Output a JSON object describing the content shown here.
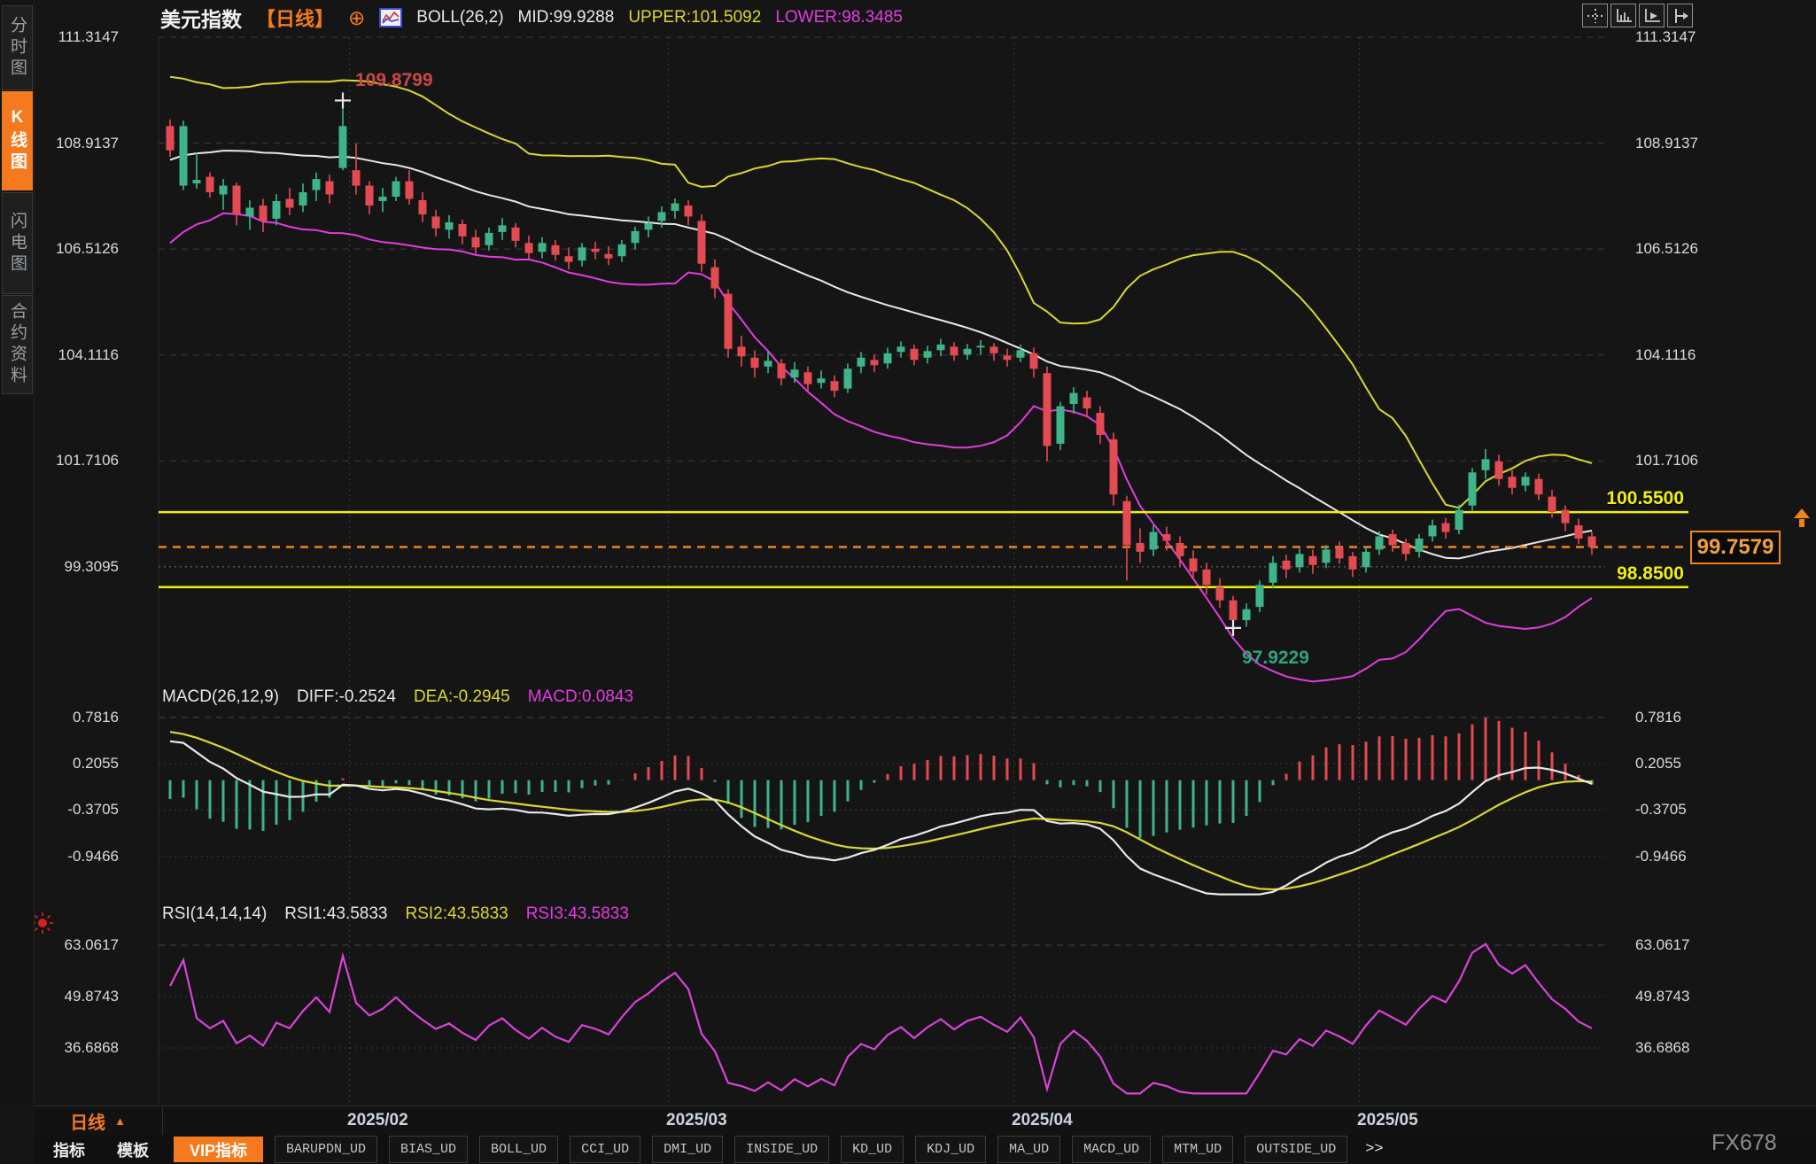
{
  "header": {
    "symbol": "美元指数",
    "period_tag": "【日线】",
    "indicator": "BOLL(26,2)",
    "mid_label": "MID:99.9288",
    "upper_label": "UPPER:101.5092",
    "lower_label": "LOWER:98.3485"
  },
  "sidebar": {
    "tabs": [
      {
        "label": "分时图",
        "active": false
      },
      {
        "label": "K线图",
        "active": true
      },
      {
        "label": "闪电图",
        "active": false
      },
      {
        "label": "合约资料",
        "active": false
      }
    ]
  },
  "toolbar_icons": [
    "move-crosshair-icon",
    "scale-axis-icon",
    "pointer-axis-icon",
    "exit-right-icon"
  ],
  "main_chart": {
    "y_ticks": [
      "111.3147",
      "108.9137",
      "106.5126",
      "104.1116",
      "101.7106",
      "99.3095"
    ],
    "high_label": "109.8799",
    "low_label": "97.9229",
    "resistance_label": "100.5500",
    "support_label": "98.8500",
    "current_price": "99.7579"
  },
  "macd": {
    "title": "MACD(26,12,9)",
    "diff_label": "DIFF:-0.2524",
    "dea_label": "DEA:-0.2945",
    "macd_label": "MACD:0.0843",
    "y_ticks": [
      "0.7816",
      "0.2055",
      "-0.3705",
      "-0.9466"
    ]
  },
  "rsi": {
    "title": "RSI(14,14,14)",
    "rsi1_label": "RSI1:43.5833",
    "rsi2_label": "RSI2:43.5833",
    "rsi3_label": "RSI3:43.5833",
    "y_ticks": [
      "63.0617",
      "49.8743",
      "36.6868"
    ]
  },
  "x_axis": {
    "period_label": "日线",
    "labels": [
      "2025/02",
      "2025/03",
      "2025/04",
      "2025/05"
    ]
  },
  "bottom_tabs": [
    {
      "label": "指标",
      "type": "plain"
    },
    {
      "label": "模板",
      "type": "plain"
    },
    {
      "label": "VIP指标",
      "type": "active"
    },
    {
      "label": "BARUPDN_UD",
      "type": "ud"
    },
    {
      "label": "BIAS_UD",
      "type": "ud"
    },
    {
      "label": "BOLL_UD",
      "type": "ud"
    },
    {
      "label": "CCI_UD",
      "type": "ud"
    },
    {
      "label": "DMI_UD",
      "type": "ud"
    },
    {
      "label": "INSIDE_UD",
      "type": "ud"
    },
    {
      "label": "KD_UD",
      "type": "ud"
    },
    {
      "label": "KDJ_UD",
      "type": "ud"
    },
    {
      "label": "MA_UD",
      "type": "ud"
    },
    {
      "label": "MACD_UD",
      "type": "ud"
    },
    {
      "label": "MTM_UD",
      "type": "ud"
    },
    {
      "label": "OUTSIDE_UD",
      "type": "ud"
    },
    {
      "label": ">>",
      "type": "more"
    }
  ],
  "watermark": "FX678",
  "colors": {
    "accent_orange": "#f5791d",
    "up_green": "#3eb488",
    "down_red": "#e44a52",
    "band_upper_yellow": "#d8d832",
    "band_mid_white": "#e8e8e8",
    "band_lower_magenta": "#e23ce2",
    "hline_yellow": "#f0f010",
    "price_line_orange": "#f08418",
    "high_label_red": "#cc4747",
    "low_label_teal": "#2fa380",
    "rsi_line_magenta": "#d943d9",
    "tick_text": "#d9dbe2"
  },
  "chart_data": {
    "type": "candlestick",
    "title": "美元指数 日线 (US Dollar Index, daily)",
    "boll_params": {
      "period": 26,
      "mult": 2
    },
    "macd_params": [
      26,
      12,
      9
    ],
    "rsi_period": 14,
    "y_axis_values": [
      111.3147,
      108.9137,
      106.5126,
      104.1116,
      101.7106,
      99.3095
    ],
    "macd_axis_values": [
      0.7816,
      0.2055,
      -0.3705,
      -0.9466
    ],
    "rsi_axis_values": [
      63.0617,
      49.8743,
      36.6868
    ],
    "hlines": [
      100.55,
      98.85
    ],
    "current_price": 99.7579,
    "high_marker": {
      "index": 13,
      "price": 109.8799
    },
    "low_marker": {
      "index": 80,
      "price": 97.9229
    },
    "month_tick_indices": [
      16,
      40,
      66,
      92
    ],
    "month_gridline_indices": [
      13.5,
      37.5,
      63.5,
      89.5
    ],
    "warmup_closes": [
      106.6,
      106.9,
      107.2,
      107.0,
      107.4,
      107.7,
      108.0,
      107.8,
      108.2,
      108.5,
      108.3,
      108.6,
      108.9,
      108.7,
      109.0,
      109.3,
      109.1,
      109.4,
      109.7,
      110.0,
      109.8,
      109.6,
      109.4,
      109.1,
      108.9
    ],
    "candles": [
      [
        109.3,
        109.45,
        108.6,
        108.75
      ],
      [
        107.95,
        109.42,
        107.85,
        109.3
      ],
      [
        108.0,
        108.7,
        107.88,
        108.08
      ],
      [
        108.15,
        108.25,
        107.68,
        107.8
      ],
      [
        107.75,
        108.1,
        107.4,
        107.95
      ],
      [
        107.95,
        108.02,
        107.05,
        107.3
      ],
      [
        107.25,
        107.62,
        106.95,
        107.45
      ],
      [
        107.5,
        107.65,
        106.9,
        107.15
      ],
      [
        107.2,
        107.76,
        107.05,
        107.6
      ],
      [
        107.65,
        107.9,
        107.28,
        107.45
      ],
      [
        107.5,
        108.0,
        107.35,
        107.8
      ],
      [
        107.85,
        108.25,
        107.6,
        108.1
      ],
      [
        108.05,
        108.2,
        107.55,
        107.75
      ],
      [
        108.35,
        109.88,
        108.3,
        109.3
      ],
      [
        108.3,
        108.9,
        107.75,
        107.95
      ],
      [
        107.95,
        108.05,
        107.3,
        107.5
      ],
      [
        107.6,
        107.9,
        107.35,
        107.7
      ],
      [
        107.7,
        108.15,
        107.6,
        108.05
      ],
      [
        108.05,
        108.3,
        107.52,
        107.65
      ],
      [
        107.62,
        107.8,
        107.12,
        107.3
      ],
      [
        107.25,
        107.4,
        106.8,
        106.98
      ],
      [
        106.95,
        107.28,
        106.75,
        107.12
      ],
      [
        107.08,
        107.18,
        106.62,
        106.8
      ],
      [
        106.78,
        106.95,
        106.4,
        106.55
      ],
      [
        106.6,
        107.0,
        106.48,
        106.88
      ],
      [
        106.9,
        107.22,
        106.72,
        107.05
      ],
      [
        107.0,
        107.1,
        106.55,
        106.7
      ],
      [
        106.65,
        106.82,
        106.28,
        106.42
      ],
      [
        106.45,
        106.78,
        106.3,
        106.65
      ],
      [
        106.6,
        106.72,
        106.25,
        106.38
      ],
      [
        106.35,
        106.55,
        106.05,
        106.22
      ],
      [
        106.25,
        106.65,
        106.12,
        106.55
      ],
      [
        106.52,
        106.68,
        106.28,
        106.45
      ],
      [
        106.4,
        106.58,
        106.15,
        106.3
      ],
      [
        106.35,
        106.72,
        106.22,
        106.62
      ],
      [
        106.65,
        107.02,
        106.5,
        106.92
      ],
      [
        106.95,
        107.25,
        106.78,
        107.1
      ],
      [
        107.15,
        107.48,
        107.0,
        107.35
      ],
      [
        107.38,
        107.66,
        107.2,
        107.55
      ],
      [
        107.5,
        107.62,
        107.05,
        107.25
      ],
      [
        107.15,
        107.3,
        106.0,
        106.18
      ],
      [
        106.1,
        106.28,
        105.4,
        105.62
      ],
      [
        105.5,
        105.6,
        104.05,
        104.25
      ],
      [
        104.3,
        104.55,
        103.85,
        104.08
      ],
      [
        104.05,
        104.22,
        103.6,
        103.82
      ],
      [
        103.85,
        104.18,
        103.7,
        103.98
      ],
      [
        103.92,
        104.02,
        103.42,
        103.58
      ],
      [
        103.6,
        103.95,
        103.48,
        103.78
      ],
      [
        103.72,
        103.85,
        103.3,
        103.45
      ],
      [
        103.48,
        103.76,
        103.35,
        103.58
      ],
      [
        103.52,
        103.65,
        103.15,
        103.3
      ],
      [
        103.35,
        103.92,
        103.25,
        103.8
      ],
      [
        103.85,
        104.18,
        103.7,
        104.05
      ],
      [
        104.0,
        104.12,
        103.72,
        103.88
      ],
      [
        103.92,
        104.28,
        103.8,
        104.15
      ],
      [
        104.18,
        104.42,
        104.05,
        104.3
      ],
      [
        104.25,
        104.35,
        103.88,
        104.0
      ],
      [
        104.05,
        104.32,
        103.92,
        104.2
      ],
      [
        104.22,
        104.48,
        104.08,
        104.35
      ],
      [
        104.3,
        104.4,
        103.98,
        104.1
      ],
      [
        104.12,
        104.36,
        104.0,
        104.25
      ],
      [
        104.28,
        104.45,
        104.12,
        104.32
      ],
      [
        104.3,
        104.38,
        103.98,
        104.15
      ],
      [
        104.1,
        104.25,
        103.85,
        104.0
      ],
      [
        104.05,
        104.35,
        103.95,
        104.22
      ],
      [
        104.15,
        104.28,
        103.6,
        103.8
      ],
      [
        103.7,
        103.85,
        101.7,
        102.05
      ],
      [
        102.1,
        103.05,
        101.95,
        102.95
      ],
      [
        103.0,
        103.38,
        102.78,
        103.25
      ],
      [
        103.15,
        103.3,
        102.7,
        102.9
      ],
      [
        102.8,
        102.95,
        102.1,
        102.3
      ],
      [
        102.2,
        102.35,
        100.7,
        100.95
      ],
      [
        100.8,
        100.92,
        99.0,
        99.8
      ],
      [
        99.85,
        100.18,
        99.4,
        99.65
      ],
      [
        99.7,
        100.25,
        99.55,
        100.1
      ],
      [
        100.05,
        100.22,
        99.68,
        99.9
      ],
      [
        99.85,
        100.0,
        99.32,
        99.55
      ],
      [
        99.5,
        99.68,
        99.02,
        99.2
      ],
      [
        99.25,
        99.4,
        98.68,
        98.9
      ],
      [
        98.85,
        99.05,
        98.38,
        98.55
      ],
      [
        98.55,
        98.65,
        97.92,
        98.1
      ],
      [
        98.1,
        98.48,
        97.95,
        98.35
      ],
      [
        98.4,
        99.0,
        98.28,
        98.9
      ],
      [
        98.95,
        99.55,
        98.82,
        99.4
      ],
      [
        99.45,
        99.58,
        99.05,
        99.25
      ],
      [
        99.3,
        99.72,
        99.18,
        99.6
      ],
      [
        99.55,
        99.7,
        99.15,
        99.35
      ],
      [
        99.4,
        99.8,
        99.28,
        99.7
      ],
      [
        99.75,
        99.88,
        99.38,
        99.5
      ],
      [
        99.55,
        99.65,
        99.08,
        99.25
      ],
      [
        99.3,
        99.75,
        99.18,
        99.65
      ],
      [
        99.7,
        100.12,
        99.58,
        100.0
      ],
      [
        100.05,
        100.15,
        99.65,
        99.8
      ],
      [
        99.85,
        99.95,
        99.45,
        99.6
      ],
      [
        99.65,
        100.05,
        99.52,
        99.95
      ],
      [
        100.0,
        100.38,
        99.88,
        100.25
      ],
      [
        100.3,
        100.42,
        99.95,
        100.1
      ],
      [
        100.15,
        100.72,
        100.05,
        100.6
      ],
      [
        100.7,
        101.55,
        100.58,
        101.45
      ],
      [
        101.5,
        101.98,
        101.3,
        101.75
      ],
      [
        101.7,
        101.85,
        101.15,
        101.3
      ],
      [
        101.35,
        101.5,
        100.95,
        101.1
      ],
      [
        101.15,
        101.45,
        101.02,
        101.35
      ],
      [
        101.3,
        101.42,
        100.82,
        100.95
      ],
      [
        100.9,
        101.05,
        100.42,
        100.55
      ],
      [
        100.6,
        100.7,
        100.12,
        100.3
      ],
      [
        100.25,
        100.4,
        99.82,
        99.95
      ],
      [
        100.0,
        100.1,
        99.58,
        99.76
      ]
    ]
  }
}
